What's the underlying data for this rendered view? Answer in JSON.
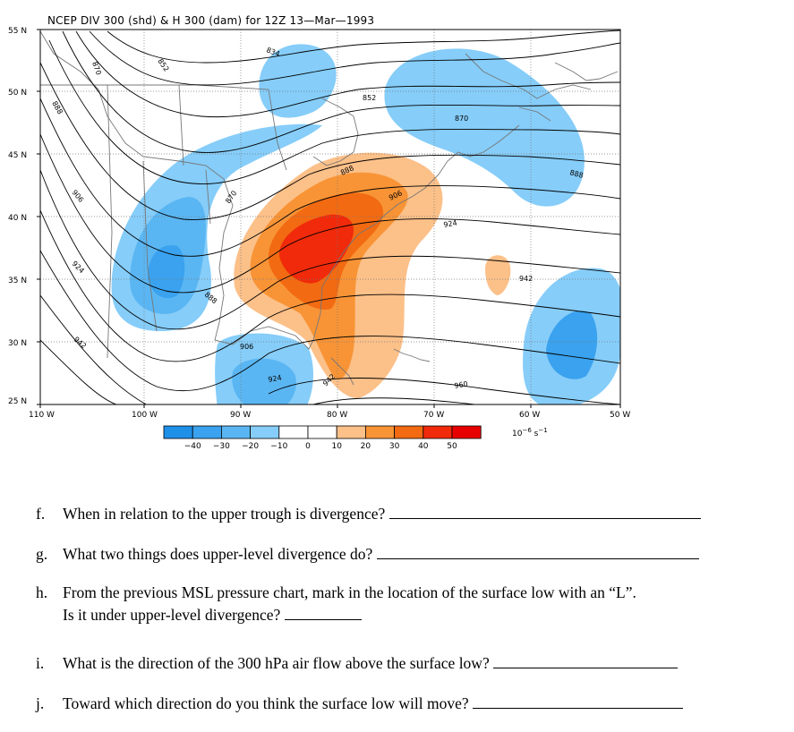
{
  "map": {
    "title": "NCEP DIV 300 (shd) & H 300 (dam) for 12Z 13—Mar—1993",
    "lat_labels": [
      "55 N",
      "50 N",
      "45 N",
      "40 N",
      "35 N",
      "30 N",
      "25 N"
    ],
    "lon_labels": [
      "110 W",
      "100 W",
      "90 W",
      "80 W",
      "70 W",
      "60 W",
      "50 W"
    ],
    "contour_labels": [
      "870",
      "852",
      "834",
      "888",
      "906",
      "924",
      "942",
      "960",
      "852",
      "870",
      "888",
      "942",
      "888",
      "906",
      "924",
      "888",
      "870",
      "906",
      "924",
      "942"
    ],
    "colorbar": {
      "ticks": [
        "−40",
        "−30",
        "−20",
        "−10",
        "0",
        "10",
        "20",
        "30",
        "40",
        "50"
      ],
      "unit_base": "10",
      "unit_exp": "−6",
      "unit_rest": " s",
      "unit_exp2": "−1",
      "colors": [
        "#1e90e8",
        "#3aa2ee",
        "#5ab6f3",
        "#86cdf9",
        "#ffffff",
        "#ffffff",
        "#fcc089",
        "#f89436",
        "#f26a12",
        "#f02a0a",
        "#e80000"
      ]
    }
  },
  "questions": [
    {
      "letter": "f.",
      "text": "When in relation to the upper trough is divergence? "
    },
    {
      "letter": "g.",
      "text": "What two things does upper-level divergence do? "
    },
    {
      "letter": "h.",
      "text": "From the previous MSL pressure chart,  mark in the location of the surface low with an “L”.",
      "text2": "Is it under upper-level divergence? "
    },
    {
      "letter": "i.",
      "text": "What is the direction of the 300 hPa air flow above the surface low? "
    },
    {
      "letter": "j.",
      "text": "Toward which direction do you think the surface low will move? "
    }
  ]
}
